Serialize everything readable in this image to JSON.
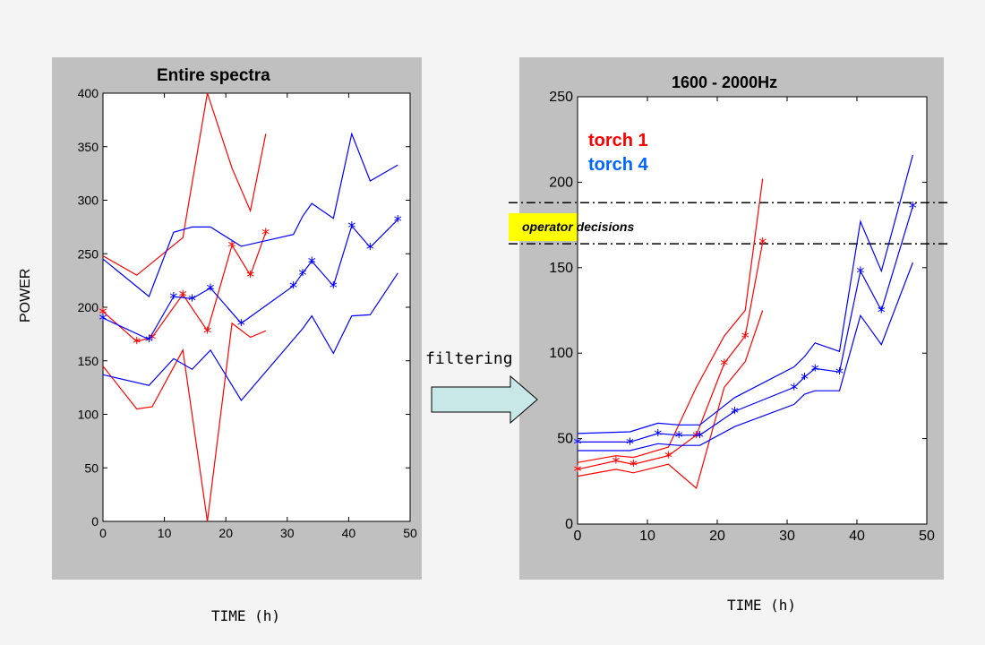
{
  "figure": {
    "ylabel": "POWER",
    "filter_label": "filtering",
    "colors": {
      "torch1": "#ff0000",
      "torch4": "#0000ff",
      "legend_torch4": "#0066ff",
      "panel_bg": "#c0c0c0",
      "highlight": "#ffff00"
    }
  },
  "chart_data": [
    {
      "type": "line",
      "title": "Entire spectra",
      "xlabel": "TIME (h)",
      "ylabel": "POWER",
      "xlim": [
        0,
        50
      ],
      "ylim": [
        0,
        400
      ],
      "xticks": [
        0,
        10,
        20,
        30,
        40,
        50
      ],
      "yticks": [
        0,
        50,
        100,
        150,
        200,
        250,
        300,
        350,
        400
      ],
      "series": [
        {
          "color": "#ff0000",
          "markers": true,
          "x": [
            0,
            5.5,
            8,
            13,
            17,
            21,
            24,
            26.5
          ],
          "y": [
            196,
            168,
            172,
            212,
            178,
            258,
            230,
            270
          ]
        },
        {
          "color": "#ff0000",
          "markers": false,
          "x": [
            0,
            5.5,
            13,
            17,
            21,
            24,
            26.5
          ],
          "y": [
            248,
            230,
            265,
            400,
            330,
            290,
            362
          ]
        },
        {
          "color": "#ff0000",
          "markers": false,
          "x": [
            0,
            5.5,
            8,
            13,
            17,
            21,
            24,
            26.5
          ],
          "y": [
            145,
            105,
            107,
            160,
            0,
            185,
            172,
            178
          ]
        },
        {
          "color": "#0000ff",
          "markers": true,
          "x": [
            0,
            7.5,
            11.5,
            14.5,
            17.5,
            22.5,
            31,
            32.5,
            34,
            37.5,
            40.5,
            43.5,
            48
          ],
          "y": [
            190,
            170,
            210,
            208,
            218,
            185,
            220,
            232,
            243,
            220,
            276,
            256,
            282
          ]
        },
        {
          "color": "#0000ff",
          "markers": false,
          "x": [
            0,
            7.5,
            11.5,
            14.5,
            17.5,
            22.5,
            31,
            32.5,
            34,
            37.5,
            40.5,
            43.5,
            48
          ],
          "y": [
            245,
            210,
            270,
            275,
            275,
            257,
            268,
            285,
            297,
            283,
            362,
            318,
            333
          ]
        },
        {
          "color": "#0000ff",
          "markers": false,
          "x": [
            0,
            7.5,
            11.5,
            14.5,
            17.5,
            22.5,
            31,
            32.5,
            34,
            37.5,
            40.5,
            43.5,
            48
          ],
          "y": [
            137,
            127,
            152,
            142,
            160,
            113,
            170,
            180,
            192,
            157,
            192,
            193,
            232
          ]
        }
      ]
    },
    {
      "type": "line",
      "title": "1600 - 2000Hz",
      "xlabel": "TIME (h)",
      "xlim": [
        0,
        50
      ],
      "ylim": [
        0,
        250
      ],
      "xticks": [
        0,
        10,
        20,
        30,
        40,
        50
      ],
      "yticks": [
        0,
        50,
        100,
        150,
        200,
        250
      ],
      "legend": [
        "torch 1",
        "torch 4"
      ],
      "annotation": "operator decisions",
      "hlines": [
        188,
        164
      ],
      "series": [
        {
          "color": "#ff0000",
          "markers": true,
          "x": [
            0,
            5.5,
            8,
            13,
            17,
            21,
            24,
            26.5
          ],
          "y": [
            32,
            37,
            35,
            40,
            52,
            94,
            110,
            165
          ]
        },
        {
          "color": "#ff0000",
          "markers": false,
          "x": [
            0,
            5.5,
            8,
            13,
            17,
            21,
            24,
            26.5
          ],
          "y": [
            36,
            40,
            39,
            45,
            80,
            110,
            125,
            202
          ]
        },
        {
          "color": "#ff0000",
          "markers": false,
          "x": [
            0,
            5.5,
            8,
            13,
            17,
            21,
            24,
            26.5
          ],
          "y": [
            28,
            32,
            30,
            35,
            21,
            80,
            95,
            125
          ]
        },
        {
          "color": "#0000ff",
          "markers": true,
          "x": [
            0,
            7.5,
            11.5,
            14.5,
            17.5,
            22.5,
            31,
            32.5,
            34,
            37.5,
            40.5,
            43.5,
            48
          ],
          "y": [
            48,
            48,
            53,
            52,
            52,
            66,
            80,
            86,
            91,
            89,
            148,
            125,
            186
          ]
        },
        {
          "color": "#0000ff",
          "markers": false,
          "x": [
            0,
            7.5,
            11.5,
            14.5,
            17.5,
            22.5,
            31,
            32.5,
            34,
            37.5,
            40.5,
            43.5,
            48
          ],
          "y": [
            53,
            54,
            59,
            58,
            58,
            74,
            92,
            98,
            106,
            101,
            177,
            148,
            216
          ]
        },
        {
          "color": "#0000ff",
          "markers": false,
          "x": [
            0,
            7.5,
            11.5,
            14.5,
            17.5,
            22.5,
            31,
            32.5,
            34,
            37.5,
            40.5,
            43.5,
            48
          ],
          "y": [
            43,
            43,
            47,
            46,
            46,
            57,
            70,
            76,
            78,
            78,
            122,
            105,
            153
          ]
        }
      ]
    }
  ]
}
